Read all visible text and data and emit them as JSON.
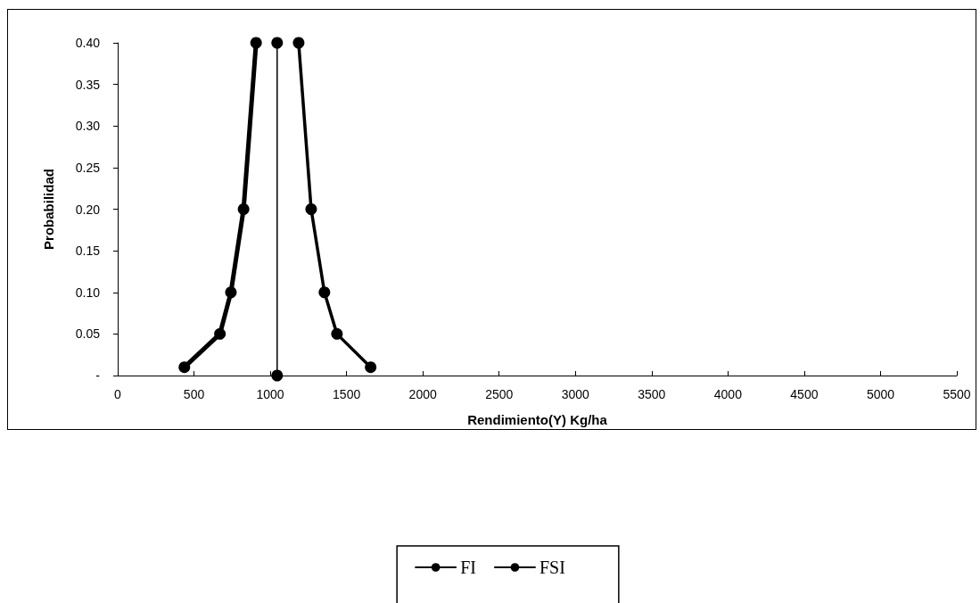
{
  "chart_data": {
    "type": "line",
    "xlabel": "Rendimiento(Y) Kg/ha",
    "ylabel": "Probabilidad",
    "xlim": [
      0,
      5500
    ],
    "xticks": [
      0,
      500,
      1000,
      1500,
      2000,
      2500,
      3000,
      3500,
      4000,
      4500,
      5000,
      5500
    ],
    "ylim": [
      0,
      0.4
    ],
    "yticks": [
      {
        "value": 0,
        "label": "-"
      },
      0.05,
      {
        "value": 0.1,
        "label": "0.10"
      },
      0.15,
      {
        "value": 0.2,
        "label": "0.20"
      },
      0.25,
      {
        "value": 0.3,
        "label": "0.30"
      },
      0.35,
      {
        "value": 0.4,
        "label": "0.40"
      }
    ],
    "grid": false,
    "legend": "bottom",
    "marker": "circle",
    "line_style": "solid",
    "series": [
      {
        "name": "FI",
        "color": "#000000",
        "x": [
          437,
          670,
          742,
          825,
          907
        ],
        "values": [
          0.01,
          0.05,
          0.1,
          0.2,
          0.4
        ]
      },
      {
        "name": "FSI",
        "color": "#000000",
        "x": [
          1186,
          1268,
          1355,
          1437,
          1658
        ],
        "values": [
          0.4,
          0.2,
          0.1,
          0.05,
          0.01
        ]
      },
      {
        "color": "#000000",
        "x": [
          1045,
          1045
        ],
        "values": [
          0.4,
          0
        ]
      }
    ]
  }
}
